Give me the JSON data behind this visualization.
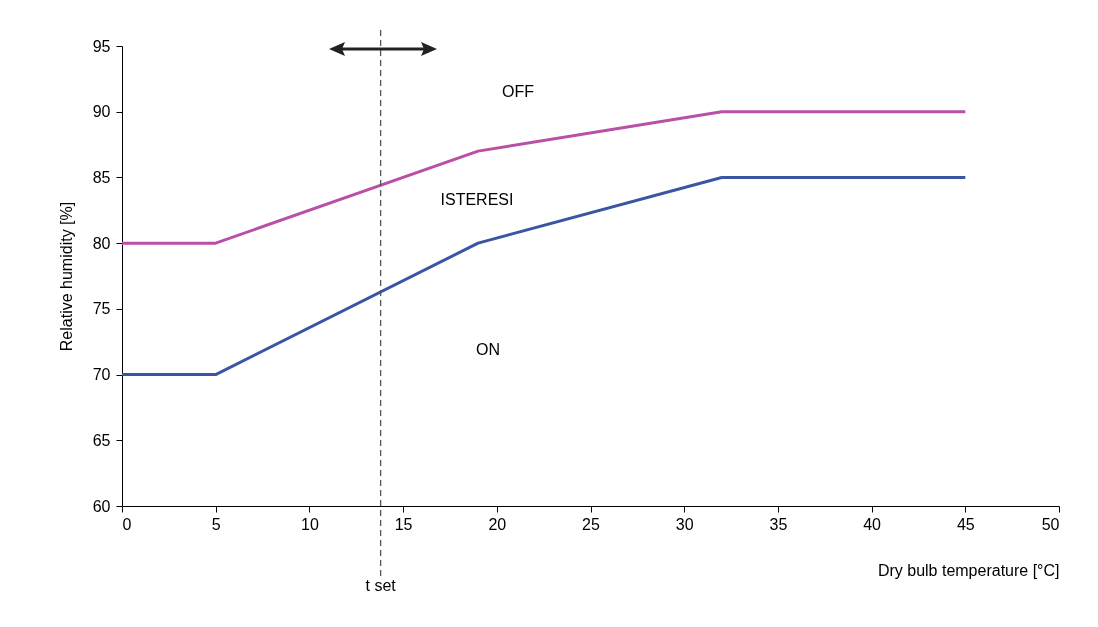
{
  "chart_data": {
    "type": "line",
    "xlabel": "Dry bulb temperature [°C]",
    "ylabel": "Relative humidity [%]",
    "xlim": [
      0,
      50
    ],
    "xticks": [
      0,
      5,
      10,
      15,
      20,
      25,
      30,
      35,
      40,
      45,
      50
    ],
    "ylim": [
      60,
      95
    ],
    "yticks": [
      60,
      65,
      70,
      75,
      80,
      85,
      90,
      95
    ],
    "grid": false,
    "legend": false,
    "marker": "none",
    "line_style": "solid",
    "series": [
      {
        "color": "#b94fa6",
        "x": [
          0,
          5,
          19,
          32,
          45
        ],
        "values": [
          80,
          80,
          87,
          90,
          90
        ]
      },
      {
        "color": "#3a55a4",
        "x": [
          0,
          5,
          19,
          32,
          45
        ],
        "values": [
          70,
          70,
          80,
          85,
          85
        ]
      }
    ],
    "ref_lines": [
      {
        "axis": "x",
        "value": 13.8,
        "label": "t set",
        "color": "#555555",
        "line_style": "dashed"
      }
    ],
    "annotations": [
      "OFF",
      "ISTERESI",
      "ON"
    ]
  }
}
